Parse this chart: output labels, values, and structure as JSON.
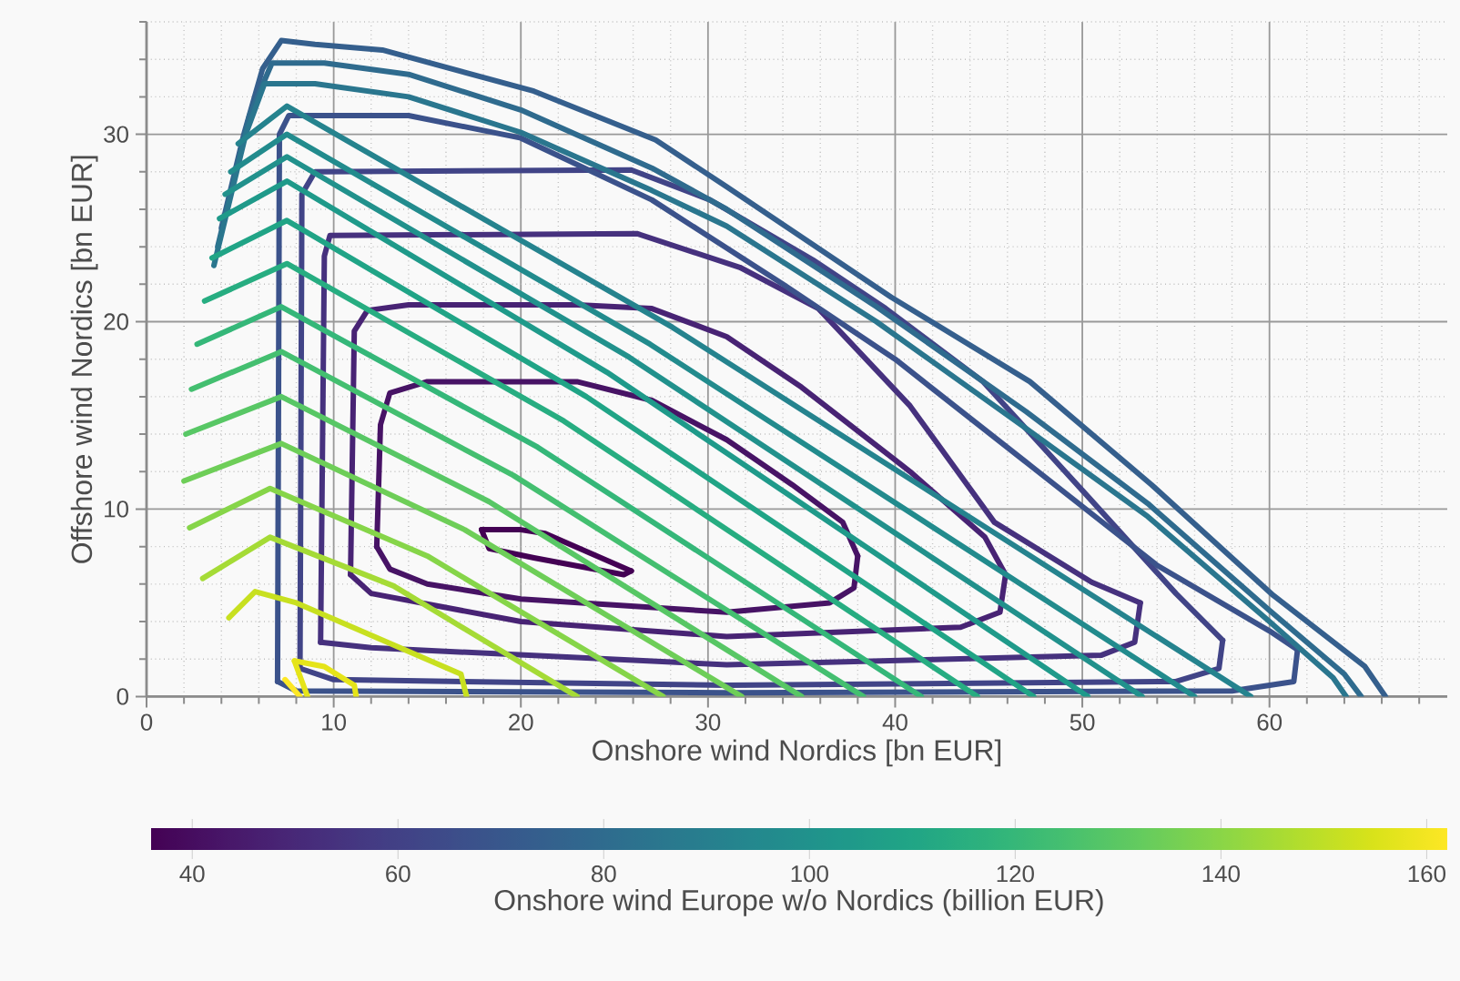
{
  "chart_data": {
    "type": "line",
    "xlabel": "Onshore wind Nordics [bn EUR]",
    "ylabel": "Offshore wind Nordics [bn EUR]",
    "clabel": "Onshore wind Europe w/o Nordics (billion EUR)",
    "clim": [
      36,
      162
    ],
    "cticks": [
      40,
      60,
      80,
      100,
      120,
      140,
      160
    ],
    "xlim": [
      0,
      69.5
    ],
    "ylim": [
      0,
      36
    ],
    "xticks": [
      0,
      {
        "value": 2,
        "label": null
      },
      {
        "value": 4,
        "label": null
      },
      {
        "value": 6,
        "label": null
      },
      {
        "value": 8,
        "label": null
      },
      10,
      {
        "value": 12,
        "label": null
      },
      {
        "value": 14,
        "label": null
      },
      {
        "value": 16,
        "label": null
      },
      {
        "value": 18,
        "label": null
      },
      20,
      {
        "value": 22,
        "label": null
      },
      {
        "value": 24,
        "label": null
      },
      {
        "value": 26,
        "label": null
      },
      {
        "value": 28,
        "label": null
      },
      30,
      {
        "value": 32,
        "label": null
      },
      {
        "value": 34,
        "label": null
      },
      {
        "value": 36,
        "label": null
      },
      {
        "value": 38,
        "label": null
      },
      40,
      {
        "value": 42,
        "label": null
      },
      {
        "value": 44,
        "label": null
      },
      {
        "value": 46,
        "label": null
      },
      {
        "value": 48,
        "label": null
      },
      50,
      {
        "value": 52,
        "label": null
      },
      {
        "value": 54,
        "label": null
      },
      {
        "value": 56,
        "label": null
      },
      {
        "value": 58,
        "label": null
      },
      60,
      {
        "value": 62,
        "label": null
      },
      {
        "value": 64,
        "label": null
      },
      {
        "value": 66,
        "label": null
      },
      {
        "value": 68,
        "label": null
      }
    ],
    "yticks": [
      0,
      {
        "value": 2,
        "label": null
      },
      {
        "value": 4,
        "label": null
      },
      {
        "value": 6,
        "label": null
      },
      {
        "value": 8,
        "label": null
      },
      10,
      {
        "value": 12,
        "label": null
      },
      {
        "value": 14,
        "label": null
      },
      {
        "value": 16,
        "label": null
      },
      {
        "value": 18,
        "label": null
      },
      20,
      {
        "value": 22,
        "label": null
      },
      {
        "value": 24,
        "label": null
      },
      {
        "value": 26,
        "label": null
      },
      {
        "value": 28,
        "label": null
      },
      30,
      {
        "value": 32,
        "label": null
      },
      {
        "value": 34,
        "label": null
      },
      {
        "value": 36,
        "label": null
      }
    ],
    "grid": true,
    "series": [
      {
        "color": "#440154",
        "x": [
          17.9,
          20.0,
          21.3,
          25.9
        ],
        "values": [
          8.9,
          8.9,
          8.7,
          6.7
        ]
      },
      {
        "color": "#440154",
        "x": [
          17.9,
          18.3,
          20.7,
          25.5,
          25.9
        ],
        "values": [
          8.9,
          7.9,
          7.4,
          6.5,
          6.7
        ]
      },
      {
        "color": "#471365",
        "x": [
          12.3,
          12.5,
          13,
          15,
          23,
          27,
          31,
          34.5,
          37.2,
          38
        ],
        "values": [
          8,
          14.5,
          16.2,
          16.8,
          16.8,
          15.8,
          13.7,
          11.3,
          9.3,
          7.5
        ]
      },
      {
        "color": "#471365",
        "x": [
          12.3,
          13,
          15,
          20,
          31,
          36.5,
          37.8,
          38
        ],
        "values": [
          8,
          6.8,
          6,
          5.2,
          4.5,
          5,
          5.8,
          7.5
        ]
      },
      {
        "color": "#482374",
        "x": [
          10.9,
          11.1,
          11.8,
          14,
          23,
          27,
          31,
          35,
          40.8,
          44.8,
          45.9
        ],
        "values": [
          6.5,
          19.5,
          20.6,
          20.9,
          20.9,
          20.7,
          19.2,
          16.5,
          12,
          8.5,
          6.5
        ]
      },
      {
        "color": "#482374",
        "x": [
          10.9,
          12,
          20,
          31,
          43.5,
          45.6,
          45.9
        ],
        "values": [
          6.5,
          5.5,
          4,
          3.2,
          3.7,
          4.5,
          6.5
        ]
      },
      {
        "color": "#46317e",
        "x": [
          9.3,
          9.5,
          9.8,
          26.2,
          31.7,
          35.9,
          40.8,
          45.3,
          50.5,
          53.1
        ],
        "values": [
          2.9,
          23.5,
          24.6,
          24.7,
          22.9,
          20.7,
          15.5,
          9.3,
          6.1,
          5.0
        ]
      },
      {
        "color": "#46317e",
        "x": [
          9.3,
          12,
          31,
          51,
          52.8,
          53.1
        ],
        "values": [
          2.9,
          2.6,
          1.7,
          2.2,
          2.9,
          5.0
        ]
      },
      {
        "color": "#414487",
        "x": [
          8.2,
          8.3,
          9,
          25.9,
          30.1,
          35.6,
          39.5,
          44.7,
          50,
          55,
          57.5
        ],
        "values": [
          1.5,
          26.8,
          28,
          28.1,
          26.5,
          23.3,
          20.7,
          16.8,
          11,
          5.5,
          3
        ]
      },
      {
        "color": "#414487",
        "x": [
          8.2,
          10,
          31,
          55,
          57.3,
          57.5
        ],
        "values": [
          1.5,
          0.9,
          0.6,
          0.8,
          1.5,
          3
        ]
      },
      {
        "color": "#3b528b",
        "x": [
          7,
          7.1,
          7.6,
          14,
          20,
          27,
          34,
          40,
          47,
          54,
          60,
          61.5
        ],
        "values": [
          0.8,
          30,
          31,
          31,
          29.8,
          26.5,
          22,
          18,
          12.5,
          7,
          3.5,
          2.5
        ]
      },
      {
        "color": "#3b528b",
        "x": [
          7,
          8,
          31,
          58,
          61.3,
          61.5
        ],
        "values": [
          0.8,
          0.3,
          0.2,
          0.3,
          0.8,
          2.5
        ]
      },
      {
        "color": "#355f8d",
        "x": [
          4.0,
          5.2,
          6.2,
          7.2,
          9,
          12.6,
          20.7,
          27.2,
          31,
          39.8,
          47.2,
          53.7,
          60.2,
          65.1,
          66.2
        ],
        "values": [
          25,
          30,
          33.5,
          35,
          34.8,
          34.5,
          32.3,
          29.7,
          27.2,
          21.3,
          16.8,
          11.3,
          5.4,
          1.6,
          0
        ]
      },
      {
        "color": "#2f6b8e",
        "x": [
          3.8,
          5.5,
          6.7,
          9.5,
          14,
          20,
          27,
          31,
          39,
          47,
          53.5,
          60,
          64,
          64.9
        ],
        "values": [
          24,
          31,
          33.8,
          33.8,
          33.2,
          31.3,
          28.2,
          26,
          20.8,
          15.2,
          10.3,
          4.6,
          1.2,
          0
        ]
      },
      {
        "color": "#2a768e",
        "x": [
          3.6,
          5.3,
          6.3,
          9,
          14,
          20,
          27,
          31,
          39,
          47,
          53.5,
          60,
          63.4,
          64.1
        ],
        "values": [
          23,
          30,
          32.7,
          32.7,
          32,
          30.1,
          27,
          25.1,
          20,
          14.3,
          9.6,
          4,
          1,
          0
        ]
      },
      {
        "color": "#25838e",
        "x": [
          4.9,
          7.5,
          28.1,
          59
        ],
        "values": [
          29.5,
          31.5,
          19.7,
          0
        ]
      },
      {
        "color": "#228b8d",
        "x": [
          4.5,
          7.5,
          26.9,
          56
        ],
        "values": [
          28,
          30,
          18.8,
          0
        ]
      },
      {
        "color": "#21918c",
        "x": [
          4.2,
          7.5,
          25.8,
          53.2
        ],
        "values": [
          26.8,
          28.8,
          18.1,
          0
        ]
      },
      {
        "color": "#1f9a8a",
        "x": [
          3.9,
          7.5,
          24.6,
          50.3
        ],
        "values": [
          25.5,
          27.5,
          17.3,
          0
        ]
      },
      {
        "color": "#20a486",
        "x": [
          3.5,
          7.5,
          23.5,
          47.4
        ],
        "values": [
          23.4,
          25.4,
          16.0,
          0
        ]
      },
      {
        "color": "#27ad81",
        "x": [
          3.1,
          7.5,
          22.3,
          44.4
        ],
        "values": [
          21.1,
          23.1,
          14.7,
          0
        ]
      },
      {
        "color": "#35b779",
        "x": [
          2.7,
          7.2,
          20.9,
          41.4
        ],
        "values": [
          18.8,
          20.8,
          13.3,
          0
        ]
      },
      {
        "color": "#44bf70",
        "x": [
          2.4,
          7.2,
          19.6,
          38.3
        ],
        "values": [
          16.4,
          18.4,
          11.8,
          0
        ]
      },
      {
        "color": "#58c765",
        "x": [
          2.1,
          7.2,
          18.3,
          35
        ],
        "values": [
          14,
          16,
          10.4,
          0
        ]
      },
      {
        "color": "#6ece58",
        "x": [
          2.0,
          7.2,
          17.0,
          31.8
        ],
        "values": [
          11.5,
          13.5,
          8.9,
          0
        ]
      },
      {
        "color": "#86d549",
        "x": [
          2.3,
          6.6,
          15.0,
          27.6
        ],
        "values": [
          9,
          11.1,
          7.5,
          0
        ]
      },
      {
        "color": "#a5db36",
        "x": [
          3.0,
          6.6,
          13.2,
          23
        ],
        "values": [
          6.3,
          8.5,
          5.9,
          0
        ]
      },
      {
        "color": "#c8e020",
        "x": [
          4.4,
          5.8,
          8,
          16.8,
          17.1
        ],
        "values": [
          4.2,
          5.6,
          5,
          1.2,
          0
        ]
      },
      {
        "color": "#e5e419",
        "x": [
          7.9,
          8.6
        ],
        "values": [
          1.9,
          0
        ]
      },
      {
        "color": "#e5e419",
        "x": [
          7.9,
          9.5,
          11.1,
          11.2
        ],
        "values": [
          1.9,
          1.6,
          0.6,
          0
        ]
      },
      {
        "color": "#fde725",
        "x": [
          7.4,
          8.2
        ],
        "values": [
          0.9,
          0
        ]
      }
    ]
  }
}
